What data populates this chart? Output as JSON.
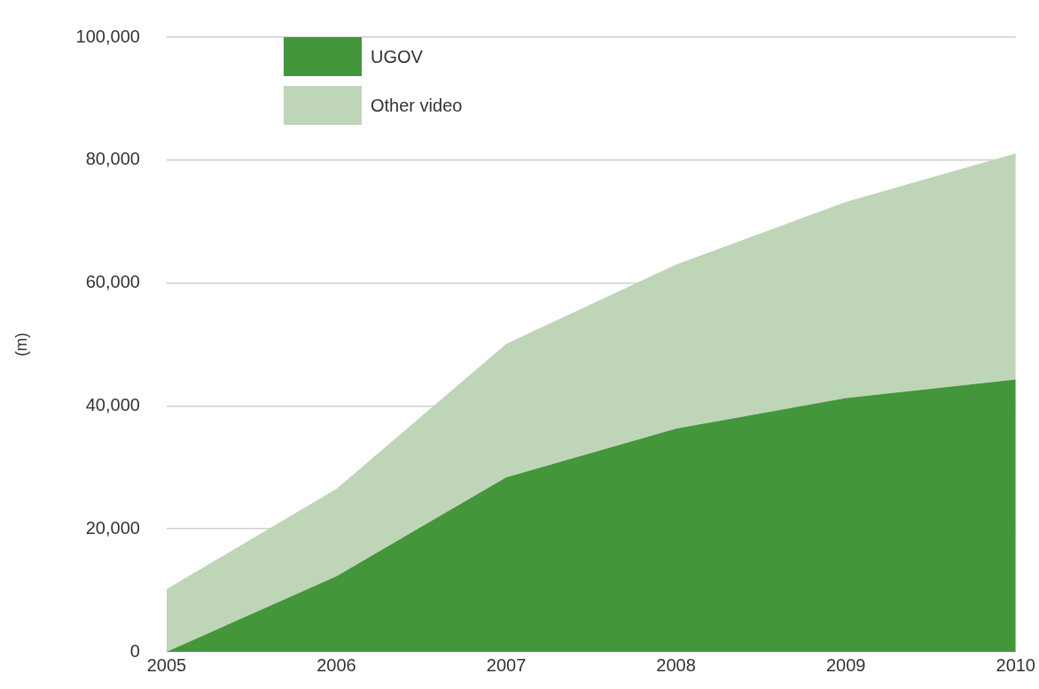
{
  "chart_data": {
    "type": "area",
    "stacked": true,
    "ylabel": "(m)",
    "categories": [
      "2005",
      "2006",
      "2007",
      "2008",
      "2009",
      "2010"
    ],
    "series": [
      {
        "name": "UGOV",
        "color": "#43963a",
        "values": [
          0,
          12300,
          28400,
          36300,
          41300,
          44300
        ]
      },
      {
        "name": "Other video",
        "color": "#bed6b7",
        "values": [
          10200,
          14200,
          21700,
          26700,
          31900,
          36800
        ]
      }
    ],
    "ylim": [
      0,
      100000
    ],
    "yticks": [
      {
        "value": 0,
        "label": "0"
      },
      {
        "value": 20000,
        "label": "20,000"
      },
      {
        "value": 40000,
        "label": "40,000"
      },
      {
        "value": 60000,
        "label": "60,000"
      },
      {
        "value": 80000,
        "label": "80,000"
      },
      {
        "value": 100000,
        "label": "100,000"
      }
    ],
    "grid": "y",
    "legend": "top left"
  }
}
